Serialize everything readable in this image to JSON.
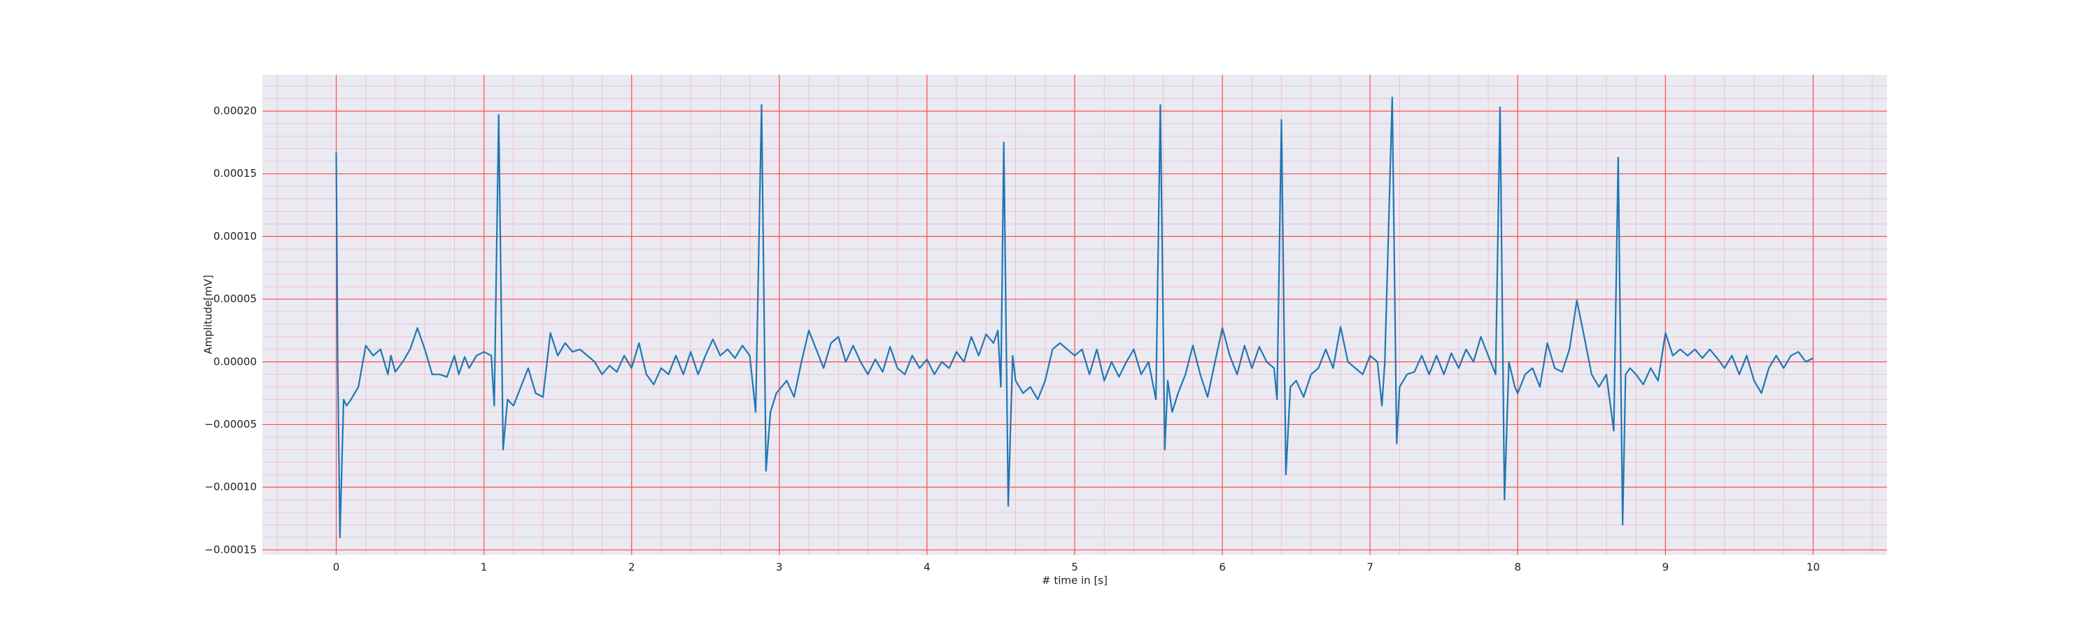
{
  "chart_data": {
    "type": "line",
    "xlabel": "# time in [s]",
    "ylabel": "Amplitude[mV]",
    "xlim": [
      -0.5,
      10.5
    ],
    "ylim": [
      -0.000154,
      0.000229
    ],
    "xticks": [
      0,
      1,
      2,
      3,
      4,
      5,
      6,
      7,
      8,
      9,
      10
    ],
    "yticks": [
      {
        "value": -0.00015,
        "label": "−0.00015"
      },
      {
        "value": -0.0001,
        "label": "−0.00010"
      },
      {
        "value": -5e-05,
        "label": "−0.00005"
      },
      {
        "value": 0,
        "label": "0.00000"
      },
      {
        "value": 5e-05,
        "label": "0.00005"
      },
      {
        "value": 0.0001,
        "label": "0.00010"
      },
      {
        "value": 0.00015,
        "label": "0.00015"
      },
      {
        "value": 0.0002,
        "label": "0.00020"
      }
    ],
    "grid": true,
    "minor_grid": true,
    "background": "#eaeaf2",
    "grid_color": "#ff4d4d",
    "minor_grid_color": "#f4b6c6",
    "x": [
      0,
      0.01,
      0.025,
      0.05,
      0.07,
      0.1,
      0.15,
      0.2,
      0.25,
      0.3,
      0.35,
      0.37,
      0.4,
      0.45,
      0.5,
      0.55,
      0.6,
      0.65,
      0.7,
      0.75,
      0.8,
      0.83,
      0.87,
      0.9,
      0.95,
      1.0,
      1.05,
      1.07,
      1.1,
      1.13,
      1.16,
      1.2,
      1.25,
      1.3,
      1.35,
      1.4,
      1.45,
      1.5,
      1.55,
      1.6,
      1.65,
      1.7,
      1.75,
      1.8,
      1.85,
      1.9,
      1.95,
      2.0,
      2.05,
      2.1,
      2.15,
      2.2,
      2.25,
      2.3,
      2.35,
      2.4,
      2.45,
      2.5,
      2.55,
      2.6,
      2.65,
      2.7,
      2.75,
      2.8,
      2.84,
      2.88,
      2.91,
      2.94,
      2.98,
      3.05,
      3.1,
      3.15,
      3.2,
      3.25,
      3.3,
      3.35,
      3.4,
      3.45,
      3.5,
      3.55,
      3.6,
      3.65,
      3.7,
      3.75,
      3.8,
      3.85,
      3.9,
      3.95,
      4.0,
      4.05,
      4.1,
      4.15,
      4.2,
      4.25,
      4.3,
      4.35,
      4.4,
      4.45,
      4.48,
      4.5,
      4.52,
      4.55,
      4.58,
      4.6,
      4.65,
      4.7,
      4.75,
      4.8,
      4.85,
      4.9,
      5.0,
      5.05,
      5.1,
      5.15,
      5.2,
      5.25,
      5.3,
      5.35,
      5.4,
      5.45,
      5.5,
      5.55,
      5.58,
      5.61,
      5.63,
      5.66,
      5.7,
      5.75,
      5.8,
      5.85,
      5.9,
      5.95,
      6.0,
      6.05,
      6.1,
      6.15,
      6.2,
      6.25,
      6.3,
      6.35,
      6.37,
      6.4,
      6.43,
      6.46,
      6.5,
      6.55,
      6.6,
      6.65,
      6.7,
      6.75,
      6.8,
      6.85,
      6.9,
      6.95,
      7.0,
      7.05,
      7.08,
      7.1,
      7.15,
      7.18,
      7.2,
      7.25,
      7.3,
      7.35,
      7.4,
      7.45,
      7.5,
      7.55,
      7.6,
      7.65,
      7.7,
      7.75,
      7.8,
      7.85,
      7.88,
      7.91,
      7.94,
      7.98,
      8.0,
      8.05,
      8.1,
      8.15,
      8.2,
      8.25,
      8.3,
      8.35,
      8.4,
      8.45,
      8.5,
      8.55,
      8.6,
      8.65,
      8.68,
      8.71,
      8.73,
      8.76,
      8.8,
      8.85,
      8.9,
      8.95,
      9.0,
      9.05,
      9.1,
      9.15,
      9.2,
      9.25,
      9.3,
      9.35,
      9.4,
      9.45,
      9.5,
      9.55,
      9.6,
      9.65,
      9.7,
      9.75,
      9.8,
      9.85,
      9.9,
      9.95,
      10.0
    ],
    "series": [
      {
        "color": "#1f77b4",
        "values": [
          0.000167,
          0,
          -0.00014,
          -3e-05,
          -3.5e-05,
          -3e-05,
          -2e-05,
          1.3e-05,
          5e-06,
          1e-05,
          -1e-05,
          5e-06,
          -8e-06,
          0,
          1e-05,
          2.7e-05,
          1e-05,
          -1e-05,
          -1e-05,
          -1.2e-05,
          5e-06,
          -1e-05,
          4e-06,
          -5e-06,
          5e-06,
          8e-06,
          5e-06,
          -3.5e-05,
          0.000197,
          -7e-05,
          -3e-05,
          -3.5e-05,
          -2e-05,
          -5e-06,
          -2.5e-05,
          -2.8e-05,
          2.3e-05,
          5e-06,
          1.5e-05,
          8e-06,
          1e-05,
          5e-06,
          0,
          -1e-05,
          -3e-06,
          -8e-06,
          5e-06,
          -5e-06,
          1.5e-05,
          -1e-05,
          -1.8e-05,
          -5e-06,
          -1e-05,
          5e-06,
          -1e-05,
          8e-06,
          -1e-05,
          5e-06,
          1.8e-05,
          5e-06,
          1e-05,
          3e-06,
          1.3e-05,
          5e-06,
          -4e-05,
          0.000205,
          -8.7e-05,
          -4e-05,
          -2.5e-05,
          -1.5e-05,
          -2.8e-05,
          0,
          2.5e-05,
          1e-05,
          -5e-06,
          1.5e-05,
          2e-05,
          0,
          1.3e-05,
          0,
          -1e-05,
          2e-06,
          -8e-06,
          1.2e-05,
          -5e-06,
          -1e-05,
          5e-06,
          -5e-06,
          2e-06,
          -1e-05,
          0,
          -5e-06,
          8e-06,
          0,
          2e-05,
          5e-06,
          2.2e-05,
          1.5e-05,
          2.5e-05,
          -2e-05,
          0.000175,
          -0.000115,
          5e-06,
          -1.5e-05,
          -2.5e-05,
          -2e-05,
          -3e-05,
          -1.5e-05,
          1e-05,
          1.5e-05,
          5e-06,
          1e-05,
          -1e-05,
          1e-05,
          -1.5e-05,
          0,
          -1.2e-05,
          0,
          1e-05,
          -1e-05,
          0,
          -3e-05,
          0.000205,
          -7e-05,
          -1.5e-05,
          -4e-05,
          -2.5e-05,
          -1e-05,
          1.3e-05,
          -1e-05,
          -2.8e-05,
          0,
          2.7e-05,
          5e-06,
          -1e-05,
          1.3e-05,
          -5e-06,
          1.2e-05,
          0,
          -5e-06,
          -3e-05,
          0.000193,
          -9e-05,
          -2e-05,
          -1.5e-05,
          -2.8e-05,
          -1e-05,
          -5e-06,
          1e-05,
          -5e-06,
          2.8e-05,
          0,
          -5e-06,
          -1e-05,
          5e-06,
          0,
          -3.5e-05,
          0,
          0.000211,
          -6.5e-05,
          -2e-05,
          -1e-05,
          -8e-06,
          5e-06,
          -1e-05,
          5e-06,
          -1e-05,
          7e-06,
          -5e-06,
          1e-05,
          0,
          2e-05,
          5e-06,
          -1e-05,
          0.000203,
          -0.00011,
          0,
          -2e-05,
          -2.5e-05,
          -1e-05,
          -5e-06,
          -2e-05,
          1.5e-05,
          -5e-06,
          -8e-06,
          1e-05,
          4.9e-05,
          2e-05,
          -1e-05,
          -2e-05,
          -1e-05,
          -5.5e-05,
          0.000163,
          -0.00013,
          -1e-05,
          -5e-06,
          -1e-05,
          -1.8e-05,
          -5e-06,
          -1.5e-05,
          2.3e-05,
          5e-06,
          1e-05,
          5e-06,
          1e-05,
          3e-06,
          1e-05,
          3e-06,
          -5e-06,
          5e-06,
          -1e-05,
          5e-06,
          -1.5e-05,
          -2.5e-05,
          -5e-06,
          5e-06,
          -5e-06,
          5e-06,
          8e-06,
          0,
          3e-06
        ]
      }
    ]
  }
}
